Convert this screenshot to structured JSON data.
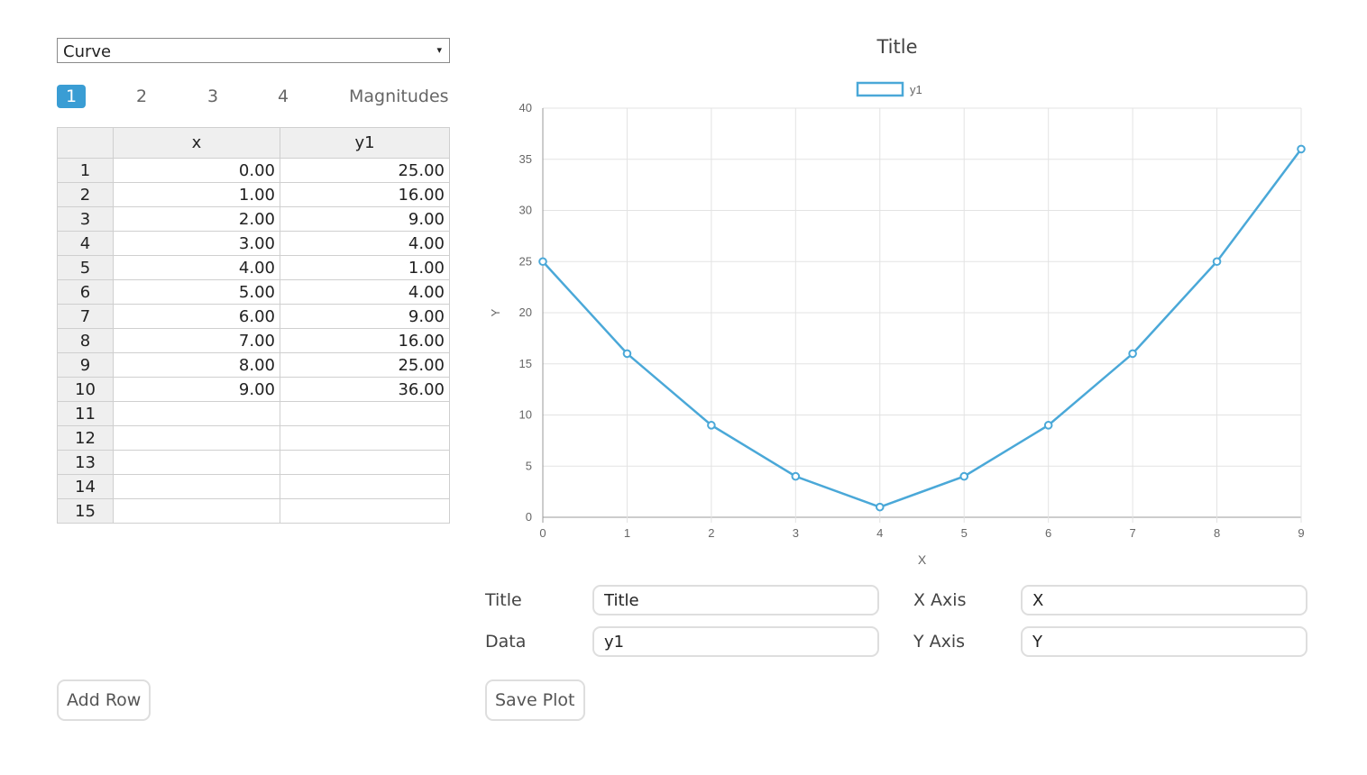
{
  "curve_select": {
    "value": "Curve",
    "arrow": "▾"
  },
  "tabs": [
    "1",
    "2",
    "3",
    "4",
    "Magnitudes"
  ],
  "table": {
    "headers": [
      "x",
      "y1"
    ],
    "rows": [
      {
        "n": "1",
        "x": "0.00",
        "y": "25.00"
      },
      {
        "n": "2",
        "x": "1.00",
        "y": "16.00"
      },
      {
        "n": "3",
        "x": "2.00",
        "y": "9.00"
      },
      {
        "n": "4",
        "x": "3.00",
        "y": "4.00"
      },
      {
        "n": "5",
        "x": "4.00",
        "y": "1.00"
      },
      {
        "n": "6",
        "x": "5.00",
        "y": "4.00"
      },
      {
        "n": "7",
        "x": "6.00",
        "y": "9.00"
      },
      {
        "n": "8",
        "x": "7.00",
        "y": "16.00"
      },
      {
        "n": "9",
        "x": "8.00",
        "y": "25.00"
      },
      {
        "n": "10",
        "x": "9.00",
        "y": "36.00"
      },
      {
        "n": "11",
        "x": "",
        "y": ""
      },
      {
        "n": "12",
        "x": "",
        "y": ""
      },
      {
        "n": "13",
        "x": "",
        "y": ""
      },
      {
        "n": "14",
        "x": "",
        "y": ""
      },
      {
        "n": "15",
        "x": "",
        "y": ""
      }
    ]
  },
  "chart_data": {
    "type": "line",
    "title": "Title",
    "xlabel": "X",
    "ylabel": "Y",
    "x": [
      0,
      1,
      2,
      3,
      4,
      5,
      6,
      7,
      8,
      9
    ],
    "series": [
      {
        "name": "y1",
        "values": [
          25,
          16,
          9,
          4,
          1,
          4,
          9,
          16,
          25,
          36
        ],
        "color": "#4aa8d8"
      }
    ],
    "xlim": [
      0,
      9
    ],
    "ylim": [
      0,
      40
    ],
    "yticks": [
      0,
      5,
      10,
      15,
      20,
      25,
      30,
      35,
      40
    ],
    "xticks": [
      0,
      1,
      2,
      3,
      4,
      5,
      6,
      7,
      8,
      9
    ],
    "grid": true,
    "legend": "top-center"
  },
  "form": {
    "title_label": "Title",
    "title_value": "Title",
    "data_label": "Data",
    "data_value": "y1",
    "xaxis_label": "X Axis",
    "xaxis_value": "X",
    "yaxis_label": "Y Axis",
    "yaxis_value": "Y"
  },
  "buttons": {
    "add_row": "Add Row",
    "save_plot": "Save Plot"
  }
}
